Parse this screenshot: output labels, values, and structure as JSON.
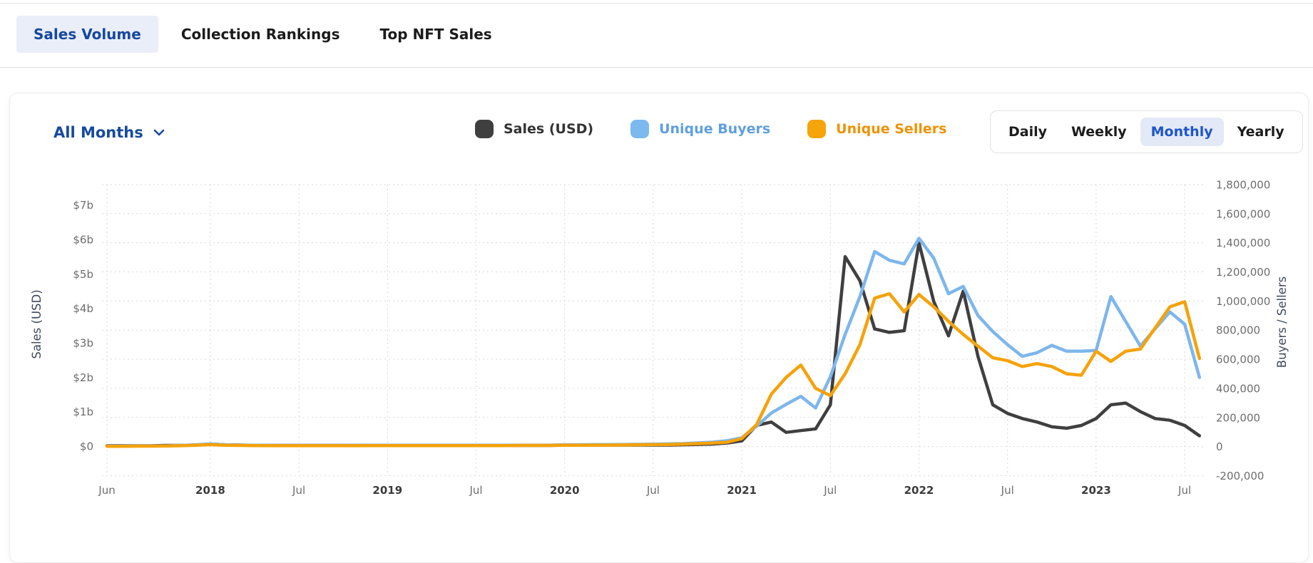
{
  "tabs": [
    {
      "label": "Sales Volume",
      "active": true
    },
    {
      "label": "Collection Rankings",
      "active": false
    },
    {
      "label": "Top NFT Sales",
      "active": false
    }
  ],
  "filters": {
    "range_selector_label": "All Months",
    "chevron_icon": "chevron-down"
  },
  "legend": {
    "items": [
      {
        "label": "Sales (USD)",
        "color": "#3f3f3f",
        "label_color": "#333333"
      },
      {
        "label": "Unique Buyers",
        "color": "#7cb9ee",
        "label_color": "#5f9fdf"
      },
      {
        "label": "Unique Sellers",
        "color": "#f5a40c",
        "label_color": "#ee9203"
      }
    ]
  },
  "periods": {
    "options": [
      {
        "label": "Daily",
        "active": false
      },
      {
        "label": "Weekly",
        "active": false
      },
      {
        "label": "Monthly",
        "active": true
      },
      {
        "label": "Yearly",
        "active": false
      }
    ]
  },
  "colors": {
    "active_tab_text": "#16479f",
    "active_tab_bg": "#e9eef9",
    "active_period_text": "#1e56c8",
    "active_period_bg": "#e4e9f7",
    "gridline": "#d8d8d8"
  },
  "chart_data": {
    "type": "line",
    "title": "",
    "left_axis": {
      "title": "Sales (USD)",
      "ticks": [
        "$0",
        "$1b",
        "$2b",
        "$3b",
        "$4b",
        "$5b",
        "$6b",
        "$7b"
      ],
      "range_b": [
        0,
        7
      ]
    },
    "right_axis": {
      "title": "Buyers / Sellers",
      "ticks": [
        "-200,000",
        "0",
        "200,000",
        "400,000",
        "600,000",
        "800,000",
        "1,000,000",
        "1,200,000",
        "1,400,000",
        "1,600,000",
        "1,800,000"
      ],
      "range": [
        -200000,
        1800000
      ]
    },
    "x_ticks": [
      {
        "i": 0,
        "label": "Jun",
        "bold": false
      },
      {
        "i": 7,
        "label": "2018",
        "bold": true
      },
      {
        "i": 13,
        "label": "Jul",
        "bold": false
      },
      {
        "i": 19,
        "label": "2019",
        "bold": true
      },
      {
        "i": 25,
        "label": "Jul",
        "bold": false
      },
      {
        "i": 31,
        "label": "2020",
        "bold": true
      },
      {
        "i": 37,
        "label": "Jul",
        "bold": false
      },
      {
        "i": 43,
        "label": "2021",
        "bold": true
      },
      {
        "i": 49,
        "label": "Jul",
        "bold": false
      },
      {
        "i": 55,
        "label": "2022",
        "bold": true
      },
      {
        "i": 61,
        "label": "Jul",
        "bold": false
      },
      {
        "i": 67,
        "label": "2023",
        "bold": true
      },
      {
        "i": 73,
        "label": "Jul",
        "bold": false
      }
    ],
    "months": [
      "2017-06",
      "2017-07",
      "2017-08",
      "2017-09",
      "2017-10",
      "2017-11",
      "2017-12",
      "2018-01",
      "2018-02",
      "2018-03",
      "2018-04",
      "2018-05",
      "2018-06",
      "2018-07",
      "2018-08",
      "2018-09",
      "2018-10",
      "2018-11",
      "2018-12",
      "2019-01",
      "2019-02",
      "2019-03",
      "2019-04",
      "2019-05",
      "2019-06",
      "2019-07",
      "2019-08",
      "2019-09",
      "2019-10",
      "2019-11",
      "2019-12",
      "2020-01",
      "2020-02",
      "2020-03",
      "2020-04",
      "2020-05",
      "2020-06",
      "2020-07",
      "2020-08",
      "2020-09",
      "2020-10",
      "2020-11",
      "2020-12",
      "2021-01",
      "2021-02",
      "2021-03",
      "2021-04",
      "2021-05",
      "2021-06",
      "2021-07",
      "2021-08",
      "2021-09",
      "2021-10",
      "2021-11",
      "2021-12",
      "2022-01",
      "2022-02",
      "2022-03",
      "2022-04",
      "2022-05",
      "2022-06",
      "2022-07",
      "2022-08",
      "2022-09",
      "2022-10",
      "2022-11",
      "2022-12",
      "2023-01",
      "2023-02",
      "2023-03",
      "2023-04",
      "2023-05",
      "2023-06",
      "2023-07",
      "2023-08"
    ],
    "series": [
      {
        "name": "Sales (USD)",
        "axis": "left",
        "unit": "billion_usd",
        "color": "#3f3f3f",
        "values": [
          0.01,
          0.01,
          0.01,
          0.01,
          0.02,
          0.02,
          0.03,
          0.06,
          0.04,
          0.03,
          0.02,
          0.02,
          0.02,
          0.02,
          0.02,
          0.02,
          0.02,
          0.02,
          0.02,
          0.02,
          0.02,
          0.02,
          0.02,
          0.02,
          0.02,
          0.02,
          0.02,
          0.02,
          0.02,
          0.02,
          0.02,
          0.03,
          0.03,
          0.03,
          0.03,
          0.03,
          0.03,
          0.03,
          0.03,
          0.04,
          0.05,
          0.06,
          0.09,
          0.15,
          0.6,
          0.7,
          0.4,
          0.45,
          0.5,
          1.2,
          5.5,
          4.8,
          3.4,
          3.3,
          3.35,
          5.9,
          4.2,
          3.2,
          4.5,
          2.6,
          1.2,
          0.95,
          0.8,
          0.7,
          0.56,
          0.52,
          0.6,
          0.8,
          1.2,
          1.25,
          1.0,
          0.8,
          0.75,
          0.6,
          0.3
        ]
      },
      {
        "name": "Unique Buyers",
        "axis": "right",
        "unit": "thousand",
        "color": "#7db6ec",
        "values": [
          3,
          3,
          4,
          4,
          5,
          8,
          12,
          18,
          12,
          10,
          9,
          8,
          8,
          8,
          8,
          8,
          8,
          8,
          9,
          9,
          9,
          9,
          9,
          9,
          9,
          9,
          9,
          9,
          10,
          10,
          10,
          12,
          12,
          13,
          13,
          14,
          15,
          16,
          18,
          20,
          25,
          30,
          40,
          60,
          140,
          230,
          290,
          345,
          265,
          480,
          770,
          1030,
          1340,
          1280,
          1255,
          1430,
          1295,
          1050,
          1100,
          900,
          790,
          700,
          620,
          645,
          695,
          655,
          655,
          660,
          1030,
          860,
          690,
          810,
          925,
          840,
          475
        ]
      },
      {
        "name": "Unique Sellers",
        "axis": "right",
        "unit": "thousand",
        "color": "#f5a20a",
        "values": [
          2,
          2,
          3,
          3,
          4,
          6,
          9,
          13,
          9,
          8,
          7,
          6,
          6,
          6,
          6,
          6,
          6,
          6,
          7,
          7,
          7,
          7,
          7,
          7,
          7,
          7,
          7,
          7,
          8,
          8,
          8,
          9,
          9,
          10,
          10,
          11,
          12,
          13,
          14,
          16,
          20,
          24,
          30,
          55,
          150,
          360,
          475,
          560,
          400,
          350,
          500,
          700,
          1020,
          1050,
          925,
          1045,
          960,
          860,
          770,
          690,
          610,
          590,
          550,
          570,
          550,
          500,
          490,
          655,
          585,
          655,
          670,
          815,
          960,
          995,
          605
        ]
      }
    ],
    "grid": true,
    "legend_position": "top-center"
  }
}
